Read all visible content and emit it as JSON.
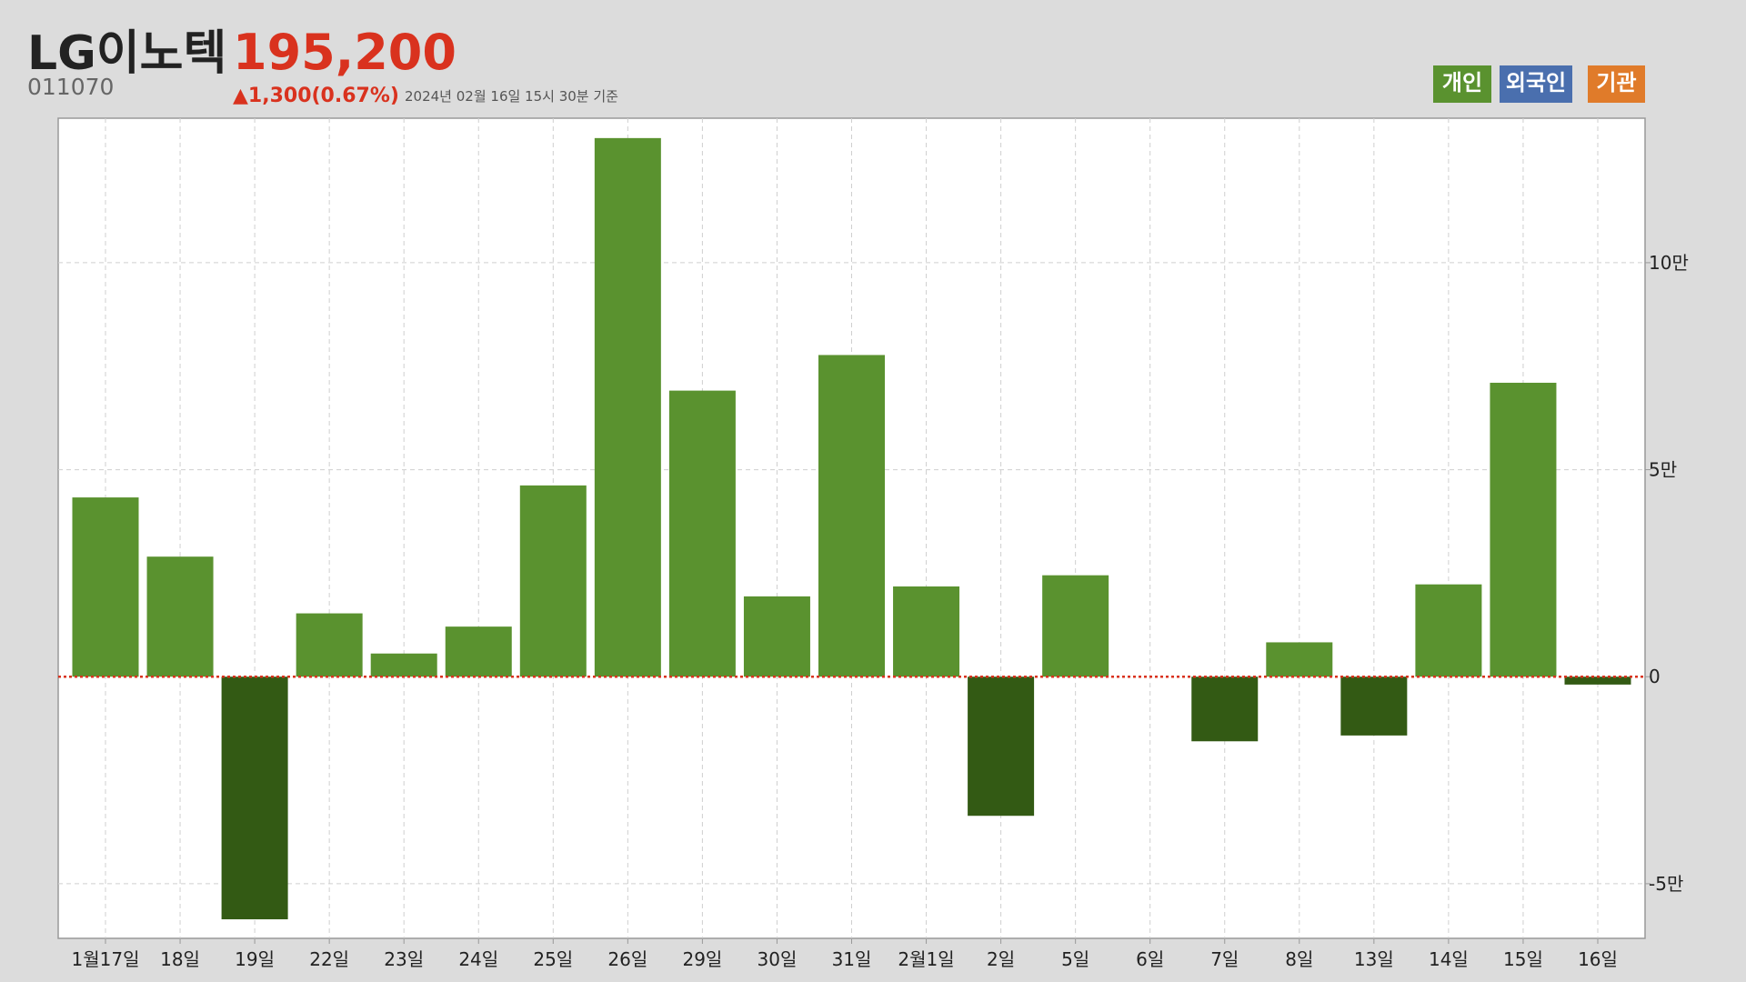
{
  "chart_data": {
    "type": "bar",
    "title": "LG이노텍",
    "price": "195,200",
    "code": "011070",
    "change": "▲1,300(0.67%)",
    "timestamp": "2024년 02월 16일 15시 30분 기준",
    "buttons": [
      {
        "label": "개인",
        "color": "#5a922f"
      },
      {
        "label": "외국인",
        "color": "#4a6fae"
      },
      {
        "label": "기관",
        "color": "#e07b2a"
      }
    ],
    "categories": [
      "1월17일",
      "18일",
      "19일",
      "22일",
      "23일",
      "24일",
      "25일",
      "26일",
      "29일",
      "30일",
      "31일",
      "2월1일",
      "2일",
      "5일",
      "6일",
      "7일",
      "8일",
      "13일",
      "14일",
      "15일",
      "16일"
    ],
    "values": [
      43300,
      29000,
      -58600,
      15300,
      5600,
      12100,
      46200,
      130100,
      69100,
      19400,
      77700,
      21800,
      -33600,
      24500,
      0,
      -15600,
      8300,
      -14200,
      22300,
      71000,
      -1900
    ],
    "color": "#5a922f",
    "negative_color": "#335a14",
    "ylim": [
      -63200,
      134900
    ],
    "yticks": [
      {
        "value": -50000,
        "label": "-5만"
      },
      0,
      {
        "value": 50000,
        "label": "5만"
      },
      {
        "value": 100000,
        "label": "10만"
      }
    ],
    "grid": true
  }
}
